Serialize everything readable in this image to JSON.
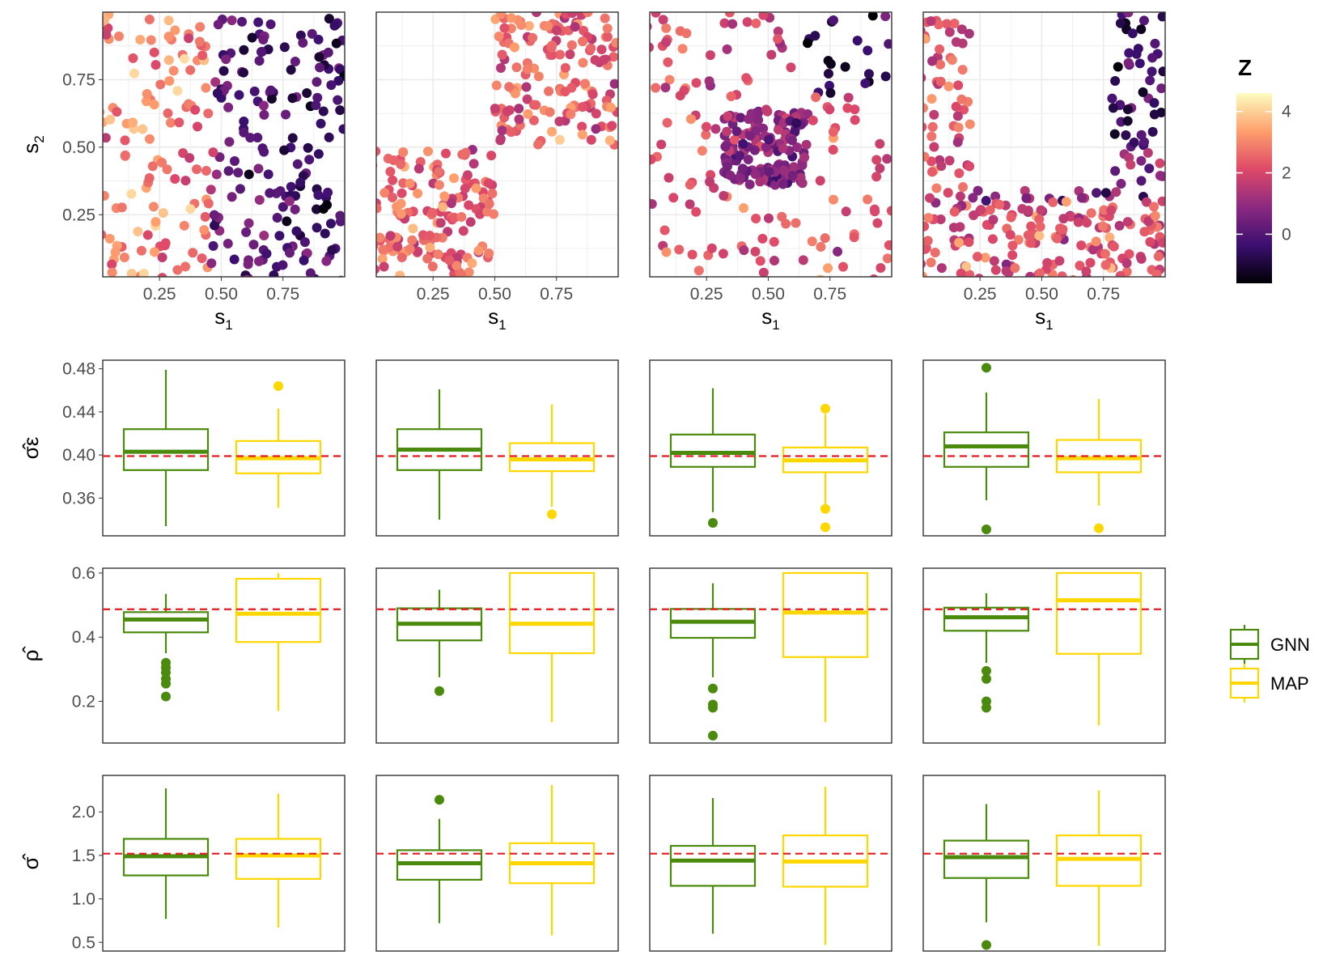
{
  "chart_data": [
    {
      "type": "scatter",
      "row": "spatial-fields",
      "panels": 4,
      "xlabel": "s",
      "xlabel_sub": "1",
      "ylabel": "s",
      "ylabel_sub": "2",
      "xlim": [
        0,
        1
      ],
      "ylim": [
        0,
        1
      ],
      "x_ticks": [
        0.25,
        0.5,
        0.75
      ],
      "x_tick_labels": [
        "0.25",
        "0.50",
        "0.75"
      ],
      "y_ticks": [
        0.25,
        0.5,
        0.75
      ],
      "y_tick_labels": [
        "0.25",
        "0.50",
        "0.75"
      ],
      "grid": true,
      "colorbar": {
        "title": "Z",
        "range": [
          -1.6,
          4.6
        ],
        "ticks": [
          0,
          2,
          4
        ],
        "tick_labels": [
          "0",
          "2",
          "4"
        ],
        "palette": [
          "#000004",
          "#3b0f70",
          "#8c2981",
          "#de4968",
          "#fe9f6d",
          "#fcfdbf"
        ]
      }
    },
    {
      "type": "box",
      "parameter": "sigma_epsilon",
      "ylabel": "σ̂ε",
      "ylim": [
        0.325,
        0.488
      ],
      "y_ticks": [
        0.36,
        0.4,
        0.44,
        0.48
      ],
      "y_tick_labels": [
        "0.36",
        "0.40",
        "0.44",
        "0.48"
      ],
      "true_value": 0.399,
      "panels": [
        {
          "GNN": {
            "min": 0.334,
            "q1": 0.386,
            "median": 0.403,
            "q3": 0.424,
            "max": 0.479,
            "outliers": []
          },
          "MAP": {
            "min": 0.351,
            "q1": 0.383,
            "median": 0.397,
            "q3": 0.413,
            "max": 0.443,
            "outliers": [
              0.464
            ]
          }
        },
        {
          "GNN": {
            "min": 0.34,
            "q1": 0.386,
            "median": 0.405,
            "q3": 0.424,
            "max": 0.461,
            "outliers": []
          },
          "MAP": {
            "min": 0.352,
            "q1": 0.385,
            "median": 0.396,
            "q3": 0.411,
            "max": 0.447,
            "outliers": [
              0.345
            ]
          }
        },
        {
          "GNN": {
            "min": 0.347,
            "q1": 0.389,
            "median": 0.402,
            "q3": 0.419,
            "max": 0.462,
            "outliers": [
              0.337
            ]
          },
          "MAP": {
            "min": 0.353,
            "q1": 0.384,
            "median": 0.395,
            "q3": 0.407,
            "max": 0.438,
            "outliers": [
              0.443,
              0.35,
              0.333
            ]
          }
        },
        {
          "GNN": {
            "min": 0.358,
            "q1": 0.389,
            "median": 0.408,
            "q3": 0.421,
            "max": 0.458,
            "outliers": [
              0.481,
              0.331
            ]
          },
          "MAP": {
            "min": 0.353,
            "q1": 0.384,
            "median": 0.397,
            "q3": 0.414,
            "max": 0.452,
            "outliers": [
              0.332
            ]
          }
        }
      ]
    },
    {
      "type": "box",
      "parameter": "rho",
      "ylabel": "ρ̂",
      "ylim": [
        0.07,
        0.615
      ],
      "y_ticks": [
        0.2,
        0.4,
        0.6
      ],
      "y_tick_labels": [
        "0.2",
        "0.4",
        "0.6"
      ],
      "true_value": 0.487,
      "panels": [
        {
          "GNN": {
            "min": 0.35,
            "q1": 0.415,
            "median": 0.455,
            "q3": 0.478,
            "max": 0.535,
            "outliers": [
              0.32,
              0.305,
              0.29,
              0.27,
              0.255,
              0.215
            ]
          },
          "MAP": {
            "min": 0.17,
            "q1": 0.385,
            "median": 0.473,
            "q3": 0.582,
            "max": 0.6,
            "outliers": []
          }
        },
        {
          "GNN": {
            "min": 0.275,
            "q1": 0.39,
            "median": 0.442,
            "q3": 0.49,
            "max": 0.548,
            "outliers": [
              0.232
            ]
          },
          "MAP": {
            "min": 0.135,
            "q1": 0.35,
            "median": 0.442,
            "q3": 0.6,
            "max": 0.6,
            "outliers": []
          }
        },
        {
          "GNN": {
            "min": 0.275,
            "q1": 0.398,
            "median": 0.448,
            "q3": 0.488,
            "max": 0.568,
            "outliers": [
              0.24,
              0.19,
              0.18,
              0.093
            ]
          },
          "MAP": {
            "min": 0.135,
            "q1": 0.338,
            "median": 0.477,
            "q3": 0.6,
            "max": 0.6,
            "outliers": []
          }
        },
        {
          "GNN": {
            "min": 0.32,
            "q1": 0.42,
            "median": 0.462,
            "q3": 0.492,
            "max": 0.537,
            "outliers": [
              0.295,
              0.27,
              0.2,
              0.18
            ]
          },
          "MAP": {
            "min": 0.125,
            "q1": 0.348,
            "median": 0.515,
            "q3": 0.6,
            "max": 0.6,
            "outliers": []
          }
        }
      ]
    },
    {
      "type": "box",
      "parameter": "sigma",
      "ylabel": "σ̂",
      "ylim": [
        0.4,
        2.42
      ],
      "y_ticks": [
        0.5,
        1.0,
        1.5,
        2.0
      ],
      "y_tick_labels": [
        "0.5",
        "1.0",
        "1.5",
        "2.0"
      ],
      "true_value": 1.52,
      "panels": [
        {
          "GNN": {
            "min": 0.77,
            "q1": 1.27,
            "median": 1.49,
            "q3": 1.69,
            "max": 2.27,
            "outliers": []
          },
          "MAP": {
            "min": 0.67,
            "q1": 1.23,
            "median": 1.5,
            "q3": 1.69,
            "max": 2.21,
            "outliers": []
          }
        },
        {
          "GNN": {
            "min": 0.72,
            "q1": 1.22,
            "median": 1.41,
            "q3": 1.56,
            "max": 1.92,
            "outliers": [
              2.14
            ]
          },
          "MAP": {
            "min": 0.58,
            "q1": 1.18,
            "median": 1.41,
            "q3": 1.64,
            "max": 2.31,
            "outliers": []
          }
        },
        {
          "GNN": {
            "min": 0.6,
            "q1": 1.15,
            "median": 1.44,
            "q3": 1.61,
            "max": 2.16,
            "outliers": []
          },
          "MAP": {
            "min": 0.47,
            "q1": 1.14,
            "median": 1.43,
            "q3": 1.73,
            "max": 2.29,
            "outliers": []
          }
        },
        {
          "GNN": {
            "min": 0.73,
            "q1": 1.24,
            "median": 1.48,
            "q3": 1.67,
            "max": 2.09,
            "outliers": [
              0.47
            ]
          },
          "MAP": {
            "min": 0.46,
            "q1": 1.15,
            "median": 1.46,
            "q3": 1.73,
            "max": 2.25,
            "outliers": []
          }
        }
      ]
    }
  ],
  "legend": {
    "entries": [
      {
        "label": "GNN",
        "color": "#4a8a0c"
      },
      {
        "label": "MAP",
        "color": "#ffd700"
      }
    ]
  },
  "colors": {
    "GNN": "#4a8a0c",
    "MAP": "#ffd700",
    "true_value_line": "#e41a1c",
    "panel_border": "#333333",
    "grid": "#ebebeb"
  }
}
